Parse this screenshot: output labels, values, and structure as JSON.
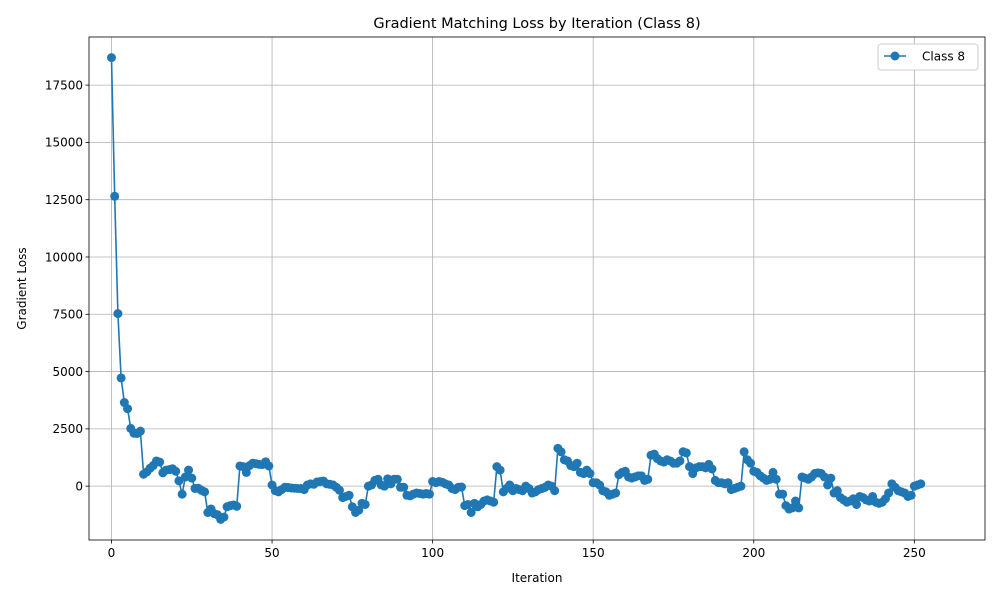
{
  "chart_data": {
    "type": "line",
    "title": "Gradient Matching Loss by Iteration (Class 8)",
    "xlabel": "Iteration",
    "ylabel": "Gradient Loss",
    "xlim": [
      -7,
      272
    ],
    "ylim": [
      -2350,
      19600
    ],
    "xticks": [
      0,
      50,
      100,
      150,
      200,
      250
    ],
    "yticks": [
      0,
      2500,
      5000,
      7500,
      10000,
      12500,
      15000,
      17500
    ],
    "ytick_labels": [
      "0",
      "2500",
      "5000",
      "7500",
      "10000",
      "12500",
      "15000",
      "17500"
    ],
    "grid": true,
    "legend_position": "top-right",
    "marker": "circle",
    "series": [
      {
        "name": "Class 8",
        "color": "#1f77b4",
        "values": [
          18700,
          12650,
          7530,
          4720,
          3650,
          3380,
          2520,
          2310,
          2300,
          2400,
          520,
          620,
          780,
          900,
          1100,
          1050,
          580,
          700,
          720,
          760,
          650,
          230,
          -350,
          400,
          700,
          350,
          -100,
          -90,
          -180,
          -250,
          -1150,
          -1000,
          -1200,
          -1250,
          -1450,
          -1350,
          -900,
          -850,
          -820,
          -880,
          880,
          850,
          600,
          900,
          1000,
          980,
          950,
          940,
          1060,
          880,
          50,
          -200,
          -250,
          -150,
          -50,
          -60,
          -80,
          -90,
          -100,
          -100,
          -150,
          50,
          100,
          80,
          180,
          200,
          220,
          100,
          80,
          50,
          -50,
          -180,
          -500,
          -450,
          -400,
          -900,
          -1150,
          -1050,
          -750,
          -800,
          0,
          50,
          250,
          300,
          50,
          0,
          320,
          100,
          300,
          300,
          -50,
          -50,
          -400,
          -420,
          -350,
          -300,
          -320,
          -350,
          -320,
          -350,
          200,
          150,
          200,
          170,
          100,
          50,
          -100,
          -150,
          -50,
          -40,
          -850,
          -800,
          -1150,
          -750,
          -900,
          -800,
          -650,
          -600,
          -650,
          -700,
          850,
          700,
          -250,
          -100,
          50,
          -200,
          -100,
          -150,
          -200,
          0,
          -100,
          -300,
          -250,
          -150,
          -100,
          -50,
          50,
          0,
          -200,
          1650,
          1500,
          1150,
          1100,
          900,
          850,
          1000,
          600,
          550,
          700,
          550,
          150,
          150,
          50,
          -200,
          -250,
          -400,
          -350,
          -300,
          500,
          600,
          650,
          400,
          350,
          400,
          450,
          450,
          250,
          300,
          1350,
          1400,
          1200,
          1100,
          1050,
          1150,
          1100,
          1000,
          1000,
          1100,
          1500,
          1450,
          850,
          550,
          800,
          850,
          850,
          800,
          950,
          750,
          250,
          150,
          150,
          100,
          150,
          -150,
          -100,
          -50,
          0,
          1500,
          1150,
          1000,
          650,
          600,
          450,
          350,
          250,
          300,
          600,
          300,
          -350,
          -350,
          -850,
          -1000,
          -950,
          -650,
          -950,
          400,
          350,
          300,
          400,
          550,
          580,
          550,
          400,
          50,
          350,
          -300,
          -200,
          -500,
          -600,
          -700,
          -650,
          -550,
          -800,
          -450,
          -500,
          -600,
          -650,
          -450,
          -700,
          -750,
          -700,
          -550,
          -300,
          100,
          -50,
          -200,
          -250,
          -300,
          -450,
          -400,
          0,
          50,
          100
        ]
      }
    ]
  }
}
